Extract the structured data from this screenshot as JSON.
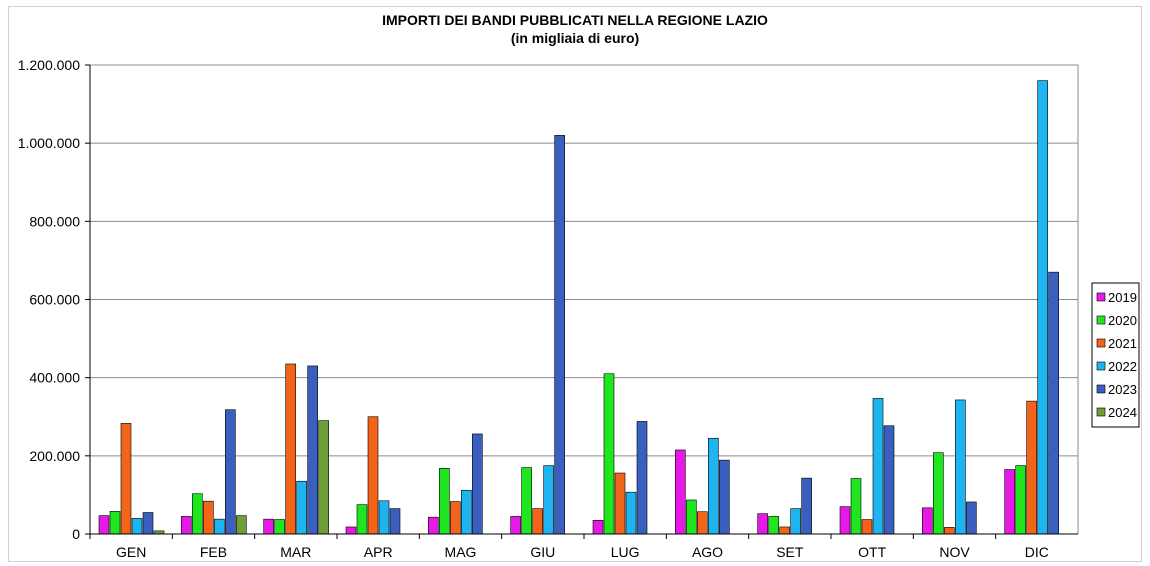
{
  "chart_data": {
    "type": "bar",
    "title": "IMPORTI DEI BANDI PUBBLICATI NELLA REGIONE LAZIO",
    "subtitle": "(in migliaia di euro)",
    "xlabel": "",
    "ylabel": "",
    "ylim": [
      0,
      1200000
    ],
    "yticks": [
      0,
      200000,
      400000,
      600000,
      800000,
      1000000,
      1200000
    ],
    "ytick_labels": [
      "0",
      "200.000",
      "400.000",
      "600.000",
      "800.000",
      "1.000.000",
      "1.200.000"
    ],
    "grid": true,
    "legend_position": "right",
    "categories": [
      "GEN",
      "FEB",
      "MAR",
      "APR",
      "MAG",
      "GIU",
      "LUG",
      "AGO",
      "SET",
      "OTT",
      "NOV",
      "DIC"
    ],
    "series": [
      {
        "name": "2019",
        "color": "#e619e6",
        "values": [
          47000,
          45000,
          38000,
          18000,
          43000,
          45000,
          35000,
          215000,
          52000,
          70000,
          67000,
          165000
        ]
      },
      {
        "name": "2020",
        "color": "#1fe61f",
        "values": [
          58000,
          103000,
          37000,
          75000,
          168000,
          170000,
          410000,
          87000,
          45000,
          142000,
          208000,
          175000
        ]
      },
      {
        "name": "2021",
        "color": "#f26419",
        "values": [
          283000,
          84000,
          435000,
          300000,
          83000,
          65000,
          156000,
          57000,
          18000,
          37000,
          17000,
          340000
        ]
      },
      {
        "name": "2022",
        "color": "#1eb4f0",
        "values": [
          40000,
          38000,
          135000,
          85000,
          112000,
          175000,
          107000,
          245000,
          65000,
          347000,
          343000,
          1160000
        ]
      },
      {
        "name": "2023",
        "color": "#3a5fbf",
        "values": [
          55000,
          318000,
          430000,
          65000,
          256000,
          1020000,
          288000,
          189000,
          143000,
          277000,
          82000,
          670000
        ]
      },
      {
        "name": "2024",
        "color": "#6e9e3a",
        "values": [
          8000,
          47000,
          290000,
          null,
          null,
          null,
          null,
          null,
          null,
          null,
          null,
          null
        ]
      }
    ]
  }
}
